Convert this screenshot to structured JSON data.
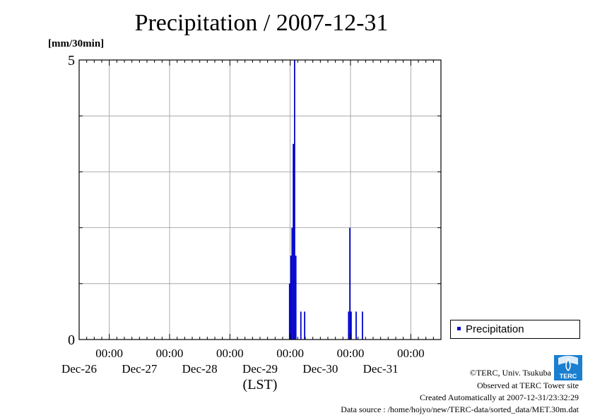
{
  "title": "Precipitation / 2007-12-31",
  "unit_label": "[mm/30min]",
  "chart_data": {
    "type": "bar",
    "title": "Precipitation / 2007-12-31",
    "ylabel": "[mm/30min]",
    "xlabel": "(LST)",
    "ylim": [
      0,
      5
    ],
    "y_tick_labels": [
      "0",
      "5"
    ],
    "x_range_days": [
      "Dec-25 12:00",
      "Dec-31 12:00"
    ],
    "x_ticks": [
      {
        "time": "00:00",
        "date": "Dec-26"
      },
      {
        "time": "00:00",
        "date": "Dec-27"
      },
      {
        "time": "00:00",
        "date": "Dec-28"
      },
      {
        "time": "00:00",
        "date": "Dec-29"
      },
      {
        "time": "00:00",
        "date": "Dec-30"
      },
      {
        "time": "00:00",
        "date": "Dec-31"
      }
    ],
    "grid": true,
    "legend_position": "right-bottom",
    "series": [
      {
        "name": "Precipitation",
        "color": "#0000cc",
        "points": [
          {
            "t": "Dec-28 23:30",
            "v": 1.0
          },
          {
            "t": "Dec-29 00:00",
            "v": 1.5
          },
          {
            "t": "Dec-29 00:30",
            "v": 2.0
          },
          {
            "t": "Dec-29 01:00",
            "v": 3.5
          },
          {
            "t": "Dec-29 01:30",
            "v": 5.0
          },
          {
            "t": "Dec-29 02:00",
            "v": 1.5
          },
          {
            "t": "Dec-29 04:00",
            "v": 0.5
          },
          {
            "t": "Dec-29 05:30",
            "v": 0.5
          },
          {
            "t": "Dec-29 23:00",
            "v": 0.5
          },
          {
            "t": "Dec-29 23:30",
            "v": 2.0
          },
          {
            "t": "Dec-30 00:00",
            "v": 0.5
          },
          {
            "t": "Dec-30 02:00",
            "v": 0.5
          },
          {
            "t": "Dec-30 04:30",
            "v": 0.5
          }
        ]
      }
    ]
  },
  "legend": {
    "label": "Precipitation"
  },
  "footer": {
    "copyright": "©TERC, Univ. Tsukuba",
    "site": "Observed at TERC Tower site",
    "created": "Created Automatically at 2007-12-31/23:32:29",
    "source": "Data source : /home/hojyo/new/TERC-data/sorted_data/MET.30m.dat"
  },
  "logo_text": "TERC"
}
